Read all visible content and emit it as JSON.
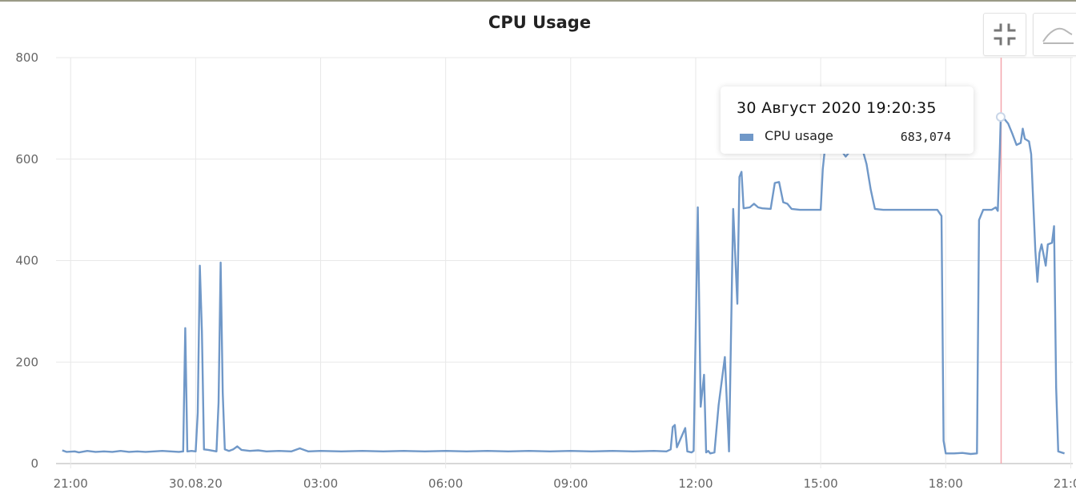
{
  "colors": {
    "series": "#7098c8",
    "crosshair": "#f4a6ad",
    "grid": "#e8e8e8",
    "axis_text": "#666666",
    "title": "#222222"
  },
  "icons": {
    "restore": "minimize-arrows-icon",
    "toggle": "area-chart-icon"
  },
  "tooltip": {
    "title": "30 Август 2020 19:20:35",
    "series_name": "CPU usage",
    "value": "683,074"
  },
  "chart_data": {
    "type": "line",
    "title": "CPU Usage",
    "xlabel": "",
    "ylabel": "",
    "x_unit": "hour (relative to 30.08.20 00:00)",
    "xlim": [
      -3.35,
      21.05
    ],
    "ylim": [
      0,
      800
    ],
    "y_ticks": [
      0,
      200,
      400,
      600,
      800
    ],
    "x_ticks": [
      {
        "value": -3,
        "label": "21:00"
      },
      {
        "value": 0,
        "label": "30.08.20"
      },
      {
        "value": 3,
        "label": "03:00"
      },
      {
        "value": 6,
        "label": "06:00"
      },
      {
        "value": 9,
        "label": "09:00"
      },
      {
        "value": 12,
        "label": "12:00"
      },
      {
        "value": 15,
        "label": "15:00"
      },
      {
        "value": 18,
        "label": "18:00"
      },
      {
        "value": 21,
        "label": "21:00"
      }
    ],
    "grid": true,
    "legend": "none",
    "series": [
      {
        "name": "CPU usage",
        "points": [
          [
            -3.2,
            26
          ],
          [
            -3.1,
            23
          ],
          [
            -2.9,
            24
          ],
          [
            -2.8,
            22
          ],
          [
            -2.6,
            25
          ],
          [
            -2.4,
            23
          ],
          [
            -2.2,
            24
          ],
          [
            -2.0,
            23
          ],
          [
            -1.8,
            25
          ],
          [
            -1.6,
            23
          ],
          [
            -1.4,
            24
          ],
          [
            -1.2,
            23
          ],
          [
            -1.0,
            24
          ],
          [
            -0.8,
            25
          ],
          [
            -0.6,
            24
          ],
          [
            -0.4,
            23
          ],
          [
            -0.3,
            24
          ],
          [
            -0.25,
            267
          ],
          [
            -0.2,
            24
          ],
          [
            -0.1,
            25
          ],
          [
            0.0,
            24
          ],
          [
            0.05,
            100
          ],
          [
            0.1,
            390
          ],
          [
            0.15,
            260
          ],
          [
            0.2,
            28
          ],
          [
            0.3,
            27
          ],
          [
            0.5,
            24
          ],
          [
            0.55,
            120
          ],
          [
            0.6,
            396
          ],
          [
            0.65,
            140
          ],
          [
            0.7,
            28
          ],
          [
            0.8,
            25
          ],
          [
            0.9,
            28
          ],
          [
            1.0,
            34
          ],
          [
            1.1,
            27
          ],
          [
            1.3,
            25
          ],
          [
            1.5,
            26
          ],
          [
            1.7,
            24
          ],
          [
            2.0,
            25
          ],
          [
            2.3,
            24
          ],
          [
            2.5,
            30
          ],
          [
            2.7,
            24
          ],
          [
            3.0,
            25
          ],
          [
            3.5,
            24
          ],
          [
            4.0,
            25
          ],
          [
            4.5,
            24
          ],
          [
            5.0,
            25
          ],
          [
            5.5,
            24
          ],
          [
            6.0,
            25
          ],
          [
            6.5,
            24
          ],
          [
            7.0,
            25
          ],
          [
            7.5,
            24
          ],
          [
            8.0,
            25
          ],
          [
            8.5,
            24
          ],
          [
            9.0,
            25
          ],
          [
            9.5,
            24
          ],
          [
            10.0,
            25
          ],
          [
            10.5,
            24
          ],
          [
            11.0,
            25
          ],
          [
            11.3,
            24
          ],
          [
            11.4,
            28
          ],
          [
            11.45,
            72
          ],
          [
            11.5,
            76
          ],
          [
            11.55,
            32
          ],
          [
            11.75,
            70
          ],
          [
            11.8,
            24
          ],
          [
            11.9,
            22
          ],
          [
            11.95,
            25
          ],
          [
            12.05,
            505
          ],
          [
            12.12,
            112
          ],
          [
            12.2,
            175
          ],
          [
            12.25,
            22
          ],
          [
            12.3,
            25
          ],
          [
            12.35,
            20
          ],
          [
            12.45,
            22
          ],
          [
            12.55,
            115
          ],
          [
            12.7,
            210
          ],
          [
            12.8,
            24
          ],
          [
            12.9,
            502
          ],
          [
            13.0,
            315
          ],
          [
            13.05,
            565
          ],
          [
            13.1,
            575
          ],
          [
            13.15,
            503
          ],
          [
            13.3,
            505
          ],
          [
            13.4,
            512
          ],
          [
            13.5,
            505
          ],
          [
            13.6,
            503
          ],
          [
            13.8,
            502
          ],
          [
            13.9,
            553
          ],
          [
            14.0,
            555
          ],
          [
            14.1,
            515
          ],
          [
            14.2,
            512
          ],
          [
            14.3,
            502
          ],
          [
            14.5,
            500
          ],
          [
            15.0,
            500
          ],
          [
            15.05,
            580
          ],
          [
            15.1,
            620
          ],
          [
            15.2,
            625
          ],
          [
            15.4,
            628
          ],
          [
            15.6,
            605
          ],
          [
            15.8,
            625
          ],
          [
            16.0,
            620
          ],
          [
            16.1,
            590
          ],
          [
            16.2,
            540
          ],
          [
            16.3,
            502
          ],
          [
            16.5,
            500
          ],
          [
            17.0,
            500
          ],
          [
            17.5,
            500
          ],
          [
            17.8,
            500
          ],
          [
            17.9,
            488
          ],
          [
            17.95,
            45
          ],
          [
            18.0,
            20
          ],
          [
            18.2,
            20
          ],
          [
            18.4,
            21
          ],
          [
            18.6,
            19
          ],
          [
            18.75,
            20
          ],
          [
            18.8,
            480
          ],
          [
            18.9,
            500
          ],
          [
            19.1,
            500
          ],
          [
            19.2,
            505
          ],
          [
            19.25,
            498
          ],
          [
            19.3,
            620
          ],
          [
            19.32,
            683
          ],
          [
            19.4,
            680
          ],
          [
            19.5,
            670
          ],
          [
            19.6,
            650
          ],
          [
            19.7,
            628
          ],
          [
            19.8,
            632
          ],
          [
            19.85,
            660
          ],
          [
            19.9,
            640
          ],
          [
            20.0,
            635
          ],
          [
            20.05,
            610
          ],
          [
            20.15,
            420
          ],
          [
            20.2,
            358
          ],
          [
            20.25,
            415
          ],
          [
            20.3,
            432
          ],
          [
            20.4,
            390
          ],
          [
            20.45,
            432
          ],
          [
            20.55,
            435
          ],
          [
            20.6,
            468
          ],
          [
            20.65,
            150
          ],
          [
            20.7,
            24
          ],
          [
            20.85,
            20
          ]
        ]
      }
    ],
    "crosshair_x": 19.33,
    "highlight_point": [
      19.32,
      683.074
    ]
  }
}
